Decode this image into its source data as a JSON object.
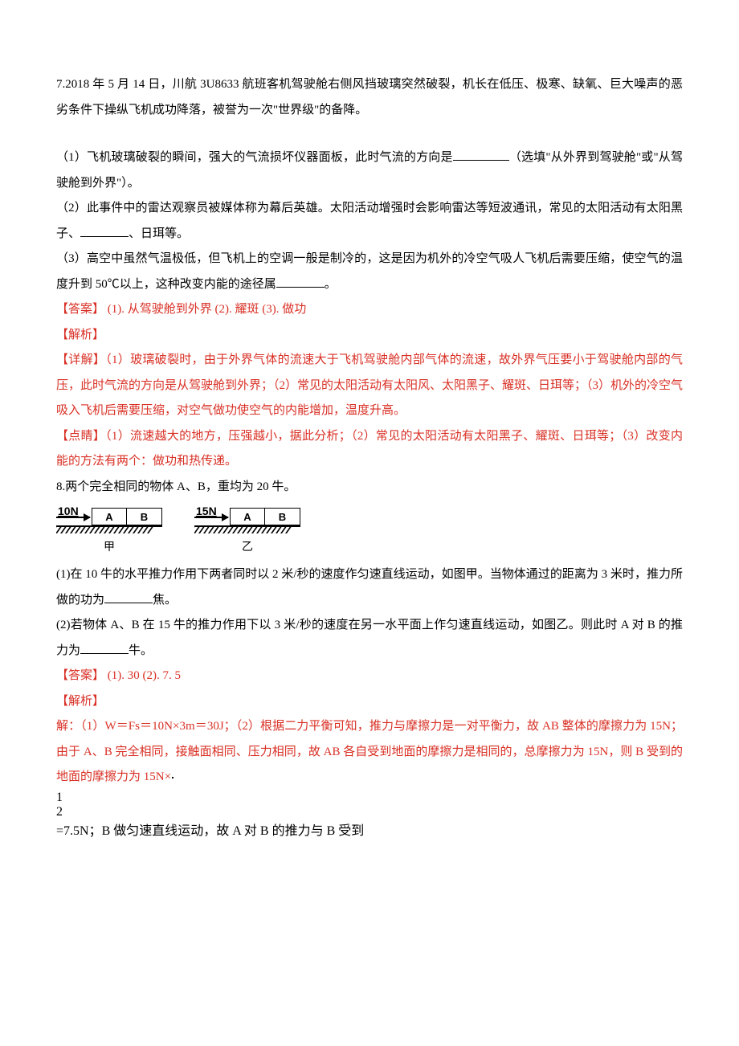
{
  "q7": {
    "intro": "7.2018 年 5 月 14 日，川航 3U8633 航班客机驾驶舱右侧风挡玻璃突然破裂，机长在低压、极寒、缺氧、巨大噪声的恶劣条件下操纵飞机成功降落，被誉为一次\"世界级\"的备降。",
    "p1_a": "（1）飞机玻璃破裂的瞬间，强大的气流损坏仪器面板，此时气流的方向是",
    "p1_b": "（选填\"从外界到驾驶舱\"或\"从驾驶舱到外界\"）。",
    "p2_a": "（2）此事件中的雷达观察员被媒体称为幕后英雄。太阳活动增强时会影响雷达等短波通讯，常见的太阳活动有太阳黑子、",
    "p2_b": "、日珥等。",
    "p3_a": "（3）高空中虽然气温极低，但飞机上的空调一般是制冷的，这是因为机外的冷空气吸人飞机后需要压缩，使空气的温度升到 50℃以上，这种改变内能的途径属",
    "p3_b": "。",
    "ans_label": "【答案】",
    "ans1": "    (1). 从驾驶舱到外界",
    "ans2": "    (2). 耀斑",
    "ans3": "    (3). 做功",
    "jiexi_label": "【解析】",
    "xj_label": "【详解】",
    "xj_text": "（1）玻璃破裂时，由于外界气体的流速大于飞机驾驶舱内部气体的流速，故外界气压要小于驾驶舱内部的气压，此时气流的方向是从驾驶舱到外界；（2）常见的太阳活动有太阳风、太阳黑子、耀斑、日珥等；（3）机外的冷空气吸入飞机后需要压缩，对空气做功使空气的内能增加，温度升高。",
    "dj_label": "【点睛】",
    "dj_text": "（1）流速越大的地方，压强越小，据此分析；（2）常见的太阳活动有太阳黑子、耀斑、日珥等；（3）改变内能的方法有两个：做功和热传递。"
  },
  "q8": {
    "intro": "8.两个完全相同的物体 A、B，重均为 20 牛。",
    "fig": {
      "jia": {
        "force": "10N",
        "a": "A",
        "b": "B",
        "label": "甲"
      },
      "yi": {
        "force": "15N",
        "a": "A",
        "b": "B",
        "label": "乙"
      }
    },
    "p1_a": "(1)在 10 牛的水平推力作用下两者同时以 2 米/秒的速度作匀速直线运动，如图甲。当物体通过的距离为 3 米时，推力所做的功为",
    "p1_b": "焦。",
    "p2_a": "(2)若物体 A、B 在 15 牛的推力作用下以 3 米/秒的速度在另一水平面上作匀速直线运动，如图乙。则此时 A 对 B 的推力为",
    "p2_b": "牛。",
    "ans_label": "【答案】",
    "ans1": "    (1). 30",
    "ans2": "    (2). 7. 5",
    "jiexi_label": "【解析】",
    "sol_a": "解：（1）W＝Fs＝10N×3m＝30J；（2）根据二力平衡可知，推力与摩擦力是一对平衡力，故 AB 整体的摩擦力为 15N；由于 A、B 完全相同，接触面相同、压力相同，故 AB 各自受到地面的摩擦力是相同的，总摩擦力为 15N，则 B 受到的地面的摩擦力为 15N×",
    "frac_n": "1",
    "frac_d": "2",
    "sol_b": "=7.5N；B 做匀速直线运动，故 A 对 B 的推力与 B 受到"
  }
}
